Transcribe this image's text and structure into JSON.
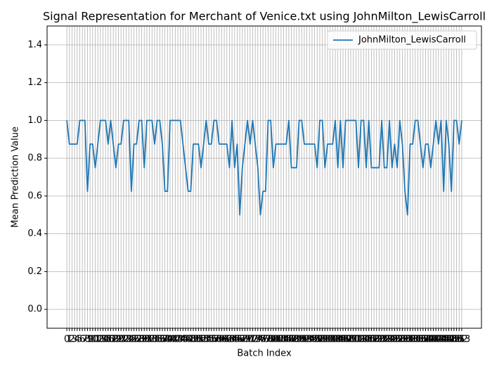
{
  "chart_data": {
    "type": "line",
    "title": "Signal Representation for Merchant of Venice.txt using JohnMilton_LewisCarroll",
    "x_label": "Batch Index",
    "y_label": "Mean Prediction Value",
    "x": [
      0,
      1,
      2,
      3,
      4,
      5,
      6,
      7,
      8,
      9,
      10,
      11,
      12,
      13,
      14,
      15,
      16,
      17,
      18,
      19,
      20,
      21,
      22,
      23,
      24,
      25,
      26,
      27,
      28,
      29,
      30,
      31,
      32,
      33,
      34,
      35,
      36,
      37,
      38,
      39,
      40,
      41,
      42,
      43,
      44,
      45,
      46,
      47,
      48,
      49,
      50,
      51,
      52,
      53,
      54,
      55,
      56,
      57,
      58,
      59,
      60,
      61,
      62,
      63,
      64,
      65,
      66,
      67,
      68,
      69,
      70,
      71,
      72,
      73,
      74,
      75,
      76,
      77,
      78,
      79,
      80,
      81,
      82,
      83,
      84,
      85,
      86,
      87,
      88,
      89,
      90,
      91,
      92,
      93,
      94,
      95,
      96,
      97,
      98,
      99,
      100,
      101,
      102,
      103,
      104,
      105,
      106,
      107,
      108,
      109,
      110,
      111,
      112,
      113,
      114,
      115,
      116,
      117,
      118,
      119,
      120,
      121,
      122,
      123,
      124,
      125,
      126,
      127,
      128,
      129,
      130,
      131,
      132,
      133,
      134,
      135,
      136,
      137,
      138,
      139,
      140,
      141,
      142,
      143,
      144,
      145,
      146,
      147,
      148,
      149,
      150,
      151,
      152,
      153
    ],
    "xticks": [
      0,
      1,
      2,
      3,
      4,
      5,
      6,
      7,
      8,
      9,
      10,
      11,
      12,
      13,
      14,
      15,
      16,
      17,
      18,
      19,
      20,
      21,
      22,
      23,
      24,
      25,
      26,
      27,
      28,
      29,
      30,
      31,
      32,
      33,
      34,
      35,
      36,
      37,
      38,
      39,
      40,
      41,
      42,
      43,
      44,
      45,
      46,
      47,
      48,
      49,
      50,
      51,
      52,
      53,
      54,
      55,
      56,
      57,
      58,
      59,
      60,
      61,
      62,
      63,
      64,
      65,
      66,
      67,
      68,
      69,
      70,
      71,
      72,
      73,
      74,
      75,
      76,
      77,
      78,
      79,
      80,
      81,
      82,
      83,
      84,
      85,
      86,
      87,
      88,
      89,
      90,
      91,
      92,
      93,
      94,
      95,
      96,
      97,
      98,
      99,
      100,
      101,
      102,
      103,
      104,
      105,
      106,
      107,
      108,
      109,
      110,
      111,
      112,
      113,
      114,
      115,
      116,
      117,
      118,
      119,
      120,
      121,
      122,
      123,
      124,
      125,
      126,
      127,
      128,
      129,
      130,
      131,
      132,
      133,
      134,
      135,
      136,
      137,
      138,
      139,
      140,
      141,
      142,
      143,
      144,
      145,
      146,
      147,
      148,
      149,
      150,
      151,
      152,
      153
    ],
    "xlim": [
      -7.65,
      160.65
    ],
    "ylim": [
      -0.1,
      1.5
    ],
    "yticks": [
      {
        "value": 0,
        "label": "0.0"
      },
      0.2,
      0.4,
      0.6,
      0.8,
      {
        "value": 1,
        "label": "1.0"
      },
      1.2,
      1.4
    ],
    "grid": true,
    "legend": "upper right",
    "series": [
      {
        "name": "JohnMilton_LewisCarroll",
        "color": "#1f77b4",
        "values": [
          1,
          0.875,
          0.875,
          0.875,
          0.875,
          1,
          1,
          1,
          0.625,
          0.875,
          0.875,
          0.75,
          0.875,
          1,
          1,
          1,
          0.875,
          1,
          0.875,
          0.75,
          0.875,
          0.875,
          1,
          1,
          1,
          0.625,
          0.875,
          0.875,
          1,
          1,
          0.75,
          1,
          1,
          1,
          0.875,
          1,
          1,
          0.875,
          0.625,
          0.625,
          1,
          1,
          1,
          1,
          1,
          0.875,
          0.75,
          0.625,
          0.625,
          0.875,
          0.875,
          0.875,
          0.75,
          0.875,
          1,
          0.875,
          0.875,
          1,
          1,
          0.875,
          0.875,
          0.875,
          0.875,
          0.75,
          1,
          0.75,
          0.875,
          0.5,
          0.75,
          0.875,
          1,
          0.875,
          1,
          0.875,
          0.75,
          0.5,
          0.625,
          0.625,
          1,
          1,
          0.75,
          0.875,
          0.875,
          0.875,
          0.875,
          0.875,
          1,
          0.75,
          0.75,
          0.75,
          1,
          1,
          0.875,
          0.875,
          0.875,
          0.875,
          0.875,
          0.75,
          1,
          1,
          0.75,
          0.875,
          0.875,
          0.875,
          1,
          0.75,
          1,
          0.75,
          1,
          1,
          1,
          1,
          1,
          0.75,
          1,
          1,
          0.75,
          1,
          0.75,
          0.75,
          0.75,
          0.75,
          1,
          0.75,
          0.75,
          1,
          0.75,
          0.875,
          0.75,
          1,
          0.875,
          0.625,
          0.5,
          0.875,
          0.875,
          1,
          1,
          0.875,
          0.75,
          0.875,
          0.875,
          0.75,
          0.875,
          1,
          0.875,
          1,
          0.625,
          1,
          0.875,
          0.625,
          1,
          1,
          0.875,
          1
        ]
      }
    ]
  }
}
